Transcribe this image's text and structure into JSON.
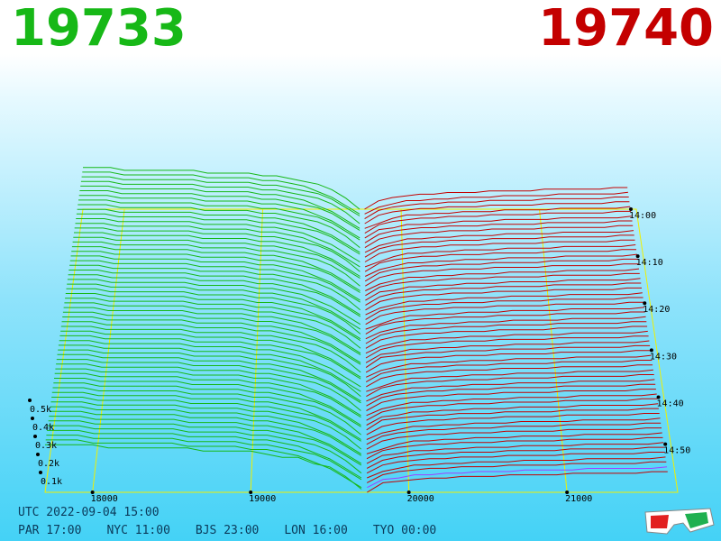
{
  "header": {
    "bid_price": "19733",
    "ask_price": "19740"
  },
  "footer": {
    "utc": "UTC 2022-09-04 15:00",
    "cities": [
      "PAR 17:00",
      "NYC 11:00",
      "BJS 23:00",
      "LON 16:00",
      "TYO 00:00"
    ]
  },
  "colors": {
    "bid": "#17b817",
    "ask": "#c40000",
    "latest": "#a040ff",
    "grid": "#f0f000"
  },
  "icons": {
    "glasses": "3d-glasses-icon"
  },
  "chart_data": {
    "type": "area",
    "projection": "3d-depth-time",
    "x_axis": {
      "ticks": [
        "18000",
        "19000",
        "20000",
        "21000"
      ],
      "values": [
        18000,
        19000,
        20000,
        21000
      ],
      "range": [
        17700,
        21700
      ]
    },
    "z_axis": {
      "ticks": [
        "0.1k",
        "0.2k",
        "0.3k",
        "0.4k",
        "0.5k"
      ],
      "values": [
        100,
        200,
        300,
        400,
        500
      ]
    },
    "time_axis": {
      "ticks": [
        "14:00",
        "14:10",
        "14:20",
        "14:30",
        "14:40",
        "14:50"
      ]
    },
    "snapshots": 60,
    "mid_price": 19736,
    "bid_profile": {
      "price": [
        17700,
        18000,
        18300,
        18600,
        18900,
        19100,
        19300,
        19500,
        19650,
        19733
      ],
      "cum_depth": [
        600,
        580,
        560,
        540,
        520,
        480,
        420,
        300,
        120,
        0
      ]
    },
    "ask_profile": {
      "price": [
        19740,
        19800,
        20000,
        20300,
        20600,
        20900,
        21200,
        21500
      ],
      "cum_depth": [
        0,
        100,
        160,
        190,
        210,
        225,
        240,
        250
      ]
    }
  }
}
